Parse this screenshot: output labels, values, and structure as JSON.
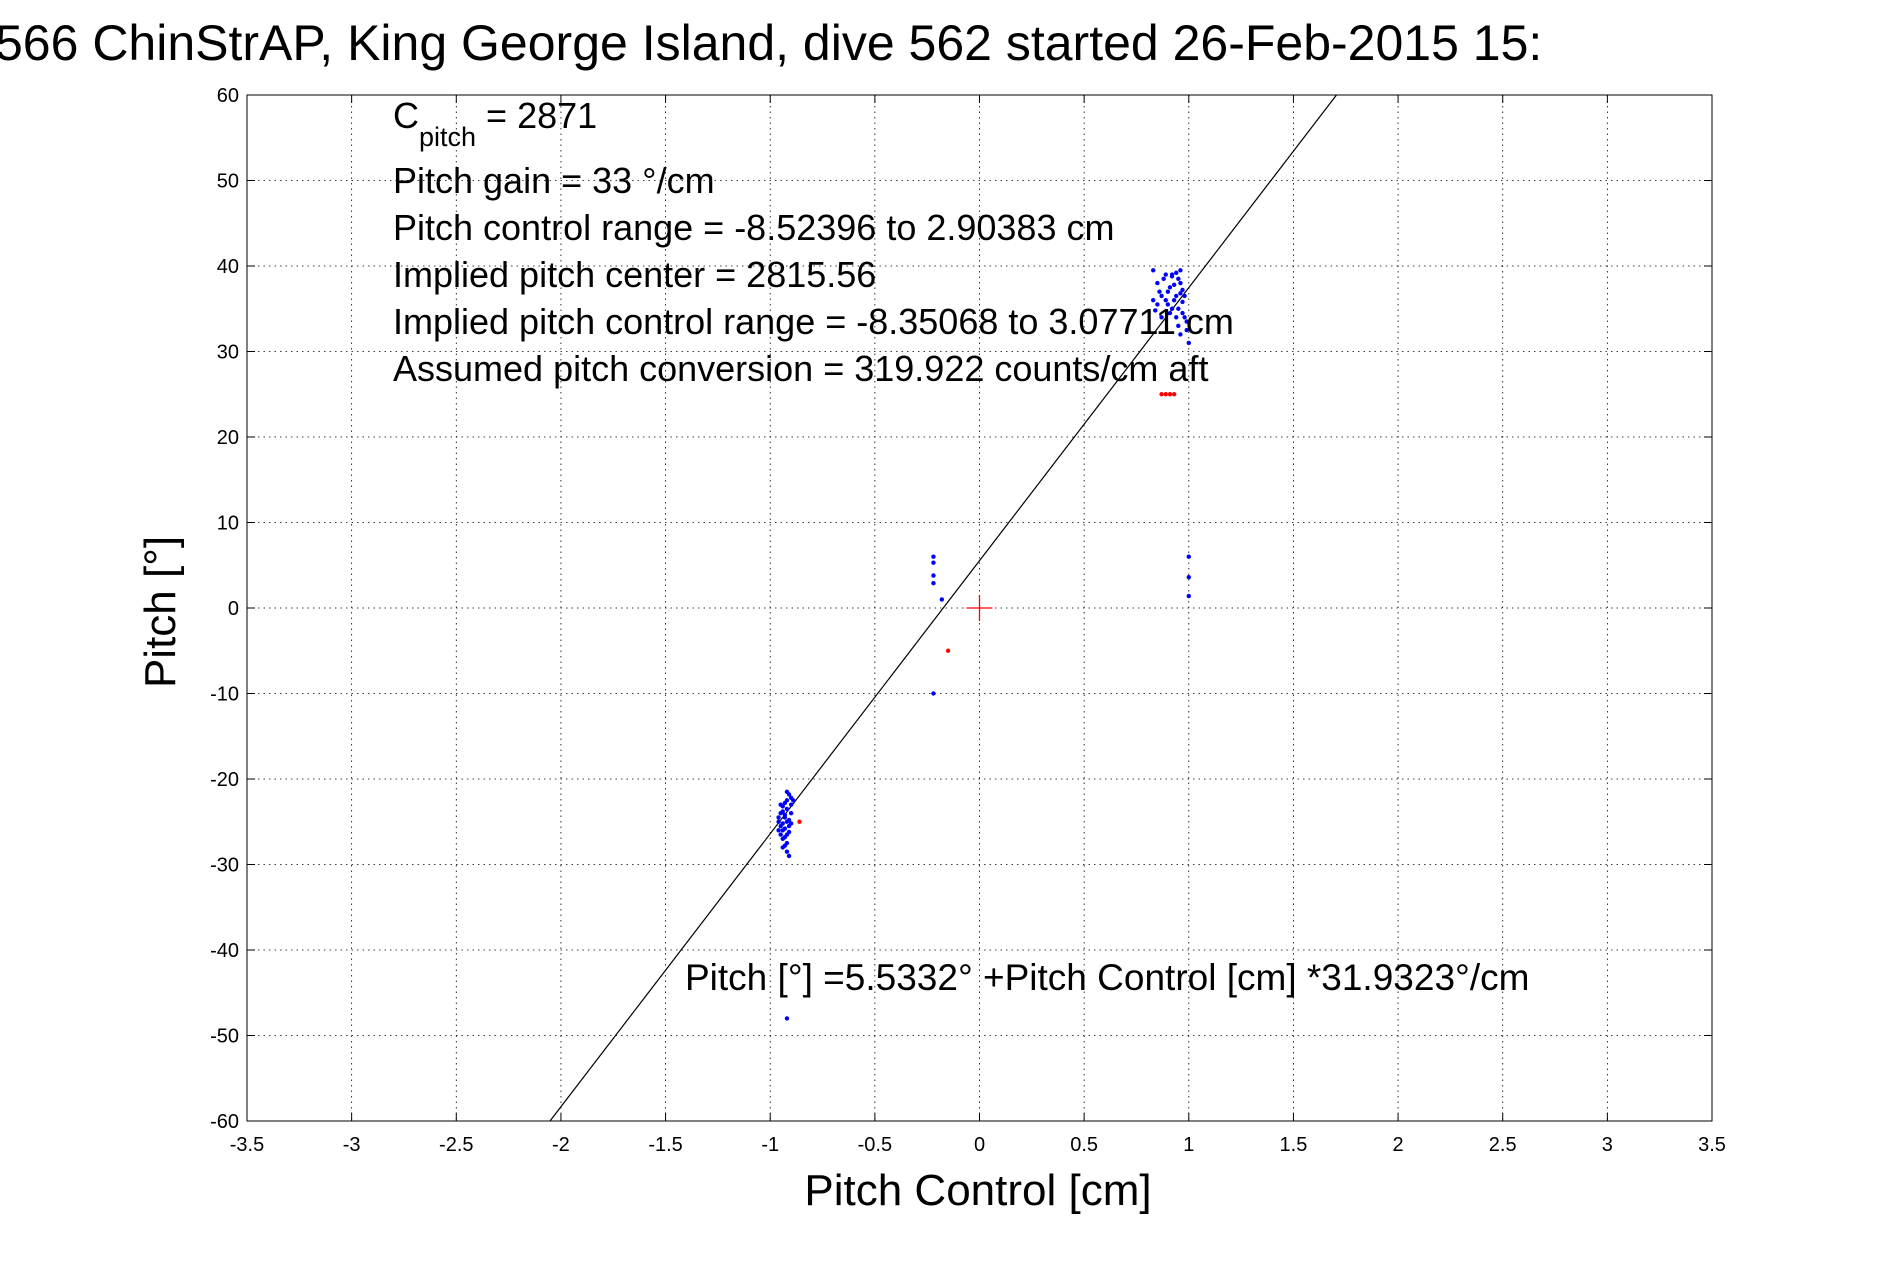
{
  "chart_data": {
    "type": "scatter",
    "title": "566 ChinStrAP, King George Island, dive 562 started 26-Feb-2015 15:",
    "xlabel": "Pitch Control [cm]",
    "ylabel": "Pitch [°]",
    "xlim": [
      -3.5,
      3.5
    ],
    "ylim": [
      -60,
      60
    ],
    "grid": true,
    "x_ticks": [
      "-3.5",
      "-3",
      "-2.5",
      "-2",
      "-1.5",
      "-1",
      "-0.5",
      "0",
      "0.5",
      "1",
      "1.5",
      "2",
      "2.5",
      "3",
      "3.5"
    ],
    "y_ticks": [
      "60",
      "50",
      "40",
      "30",
      "20",
      "10",
      "0",
      "-10",
      "-20",
      "-30",
      "-40",
      "-50",
      "-60"
    ],
    "annotations": {
      "c_pitch_prefix": "C",
      "c_pitch_sub": "pitch",
      "c_pitch_value": " = 2871",
      "pitch_gain": "Pitch gain = 33 °/cm",
      "control_range": "Pitch control range = -8.52396 to 2.90383 cm",
      "implied_center": "Implied pitch center = 2815.56",
      "implied_range": "Implied pitch control range = -8.35068 to 3.07711 cm",
      "assumed_conversion": "Assumed pitch conversion = 319.922 counts/cm aft"
    },
    "fit_label": "Pitch [°] =5.5332° +Pitch Control [cm] *31.9323°/cm",
    "fit": {
      "intercept": 5.5332,
      "slope": 31.9323
    },
    "colors": {
      "fit_line": "#000000",
      "blue_points": "#0000ff",
      "red_points": "#ff0000",
      "center_marker": "#ff0000"
    },
    "center_marker": {
      "x": 0,
      "y": 0
    },
    "series": [
      {
        "color": "blue",
        "points": [
          [
            -0.95,
            -23.0
          ],
          [
            -0.94,
            -23.8
          ],
          [
            -0.93,
            -24.5
          ],
          [
            -0.92,
            -22.5
          ],
          [
            -0.91,
            -21.8
          ],
          [
            -0.9,
            -22.2
          ],
          [
            -0.96,
            -25.0
          ],
          [
            -0.95,
            -25.5
          ],
          [
            -0.94,
            -26.0
          ],
          [
            -0.93,
            -26.8
          ],
          [
            -0.92,
            -27.5
          ],
          [
            -0.92,
            -28.5
          ],
          [
            -0.91,
            -29.0
          ],
          [
            -0.94,
            -25.2
          ],
          [
            -0.93,
            -24.2
          ],
          [
            -0.92,
            -23.5
          ],
          [
            -0.91,
            -24.8
          ],
          [
            -0.9,
            -23.0
          ],
          [
            -0.89,
            -22.5
          ],
          [
            -0.95,
            -24.0
          ],
          [
            -0.96,
            -26.0
          ],
          [
            -0.94,
            -27.0
          ],
          [
            -0.93,
            -25.8
          ],
          [
            -0.92,
            -25.0
          ],
          [
            -0.91,
            -26.2
          ],
          [
            -0.9,
            -24.0
          ],
          [
            -0.95,
            -26.5
          ],
          [
            -0.93,
            -27.8
          ],
          [
            -0.92,
            -26.5
          ],
          [
            -0.91,
            -25.5
          ],
          [
            -0.94,
            -23.2
          ],
          [
            -0.93,
            -22.8
          ],
          [
            -0.92,
            -21.5
          ],
          [
            -0.9,
            -25.2
          ],
          [
            -0.96,
            -24.5
          ],
          [
            -0.94,
            -28.0
          ],
          [
            0.83,
            39.5
          ],
          [
            0.85,
            38.0
          ],
          [
            0.86,
            37.0
          ],
          [
            0.87,
            36.5
          ],
          [
            0.88,
            38.5
          ],
          [
            0.89,
            39.0
          ],
          [
            0.9,
            35.5
          ],
          [
            0.91,
            37.5
          ],
          [
            0.92,
            38.8
          ],
          [
            0.93,
            36.0
          ],
          [
            0.94,
            39.2
          ],
          [
            0.95,
            35.0
          ],
          [
            0.96,
            38.0
          ],
          [
            0.97,
            34.5
          ],
          [
            0.98,
            36.5
          ],
          [
            0.99,
            33.5
          ],
          [
            1.0,
            31.0
          ],
          [
            0.92,
            35.0
          ],
          [
            0.94,
            34.0
          ],
          [
            0.96,
            36.8
          ],
          [
            0.93,
            37.8
          ],
          [
            0.95,
            38.5
          ],
          [
            0.97,
            37.2
          ],
          [
            0.91,
            34.5
          ],
          [
            0.89,
            36.0
          ],
          [
            0.87,
            34.0
          ],
          [
            0.85,
            35.5
          ],
          [
            0.83,
            36.0
          ],
          [
            0.84,
            34.8
          ],
          [
            0.95,
            33.0
          ],
          [
            0.96,
            32.0
          ],
          [
            0.98,
            34.0
          ],
          [
            0.99,
            32.5
          ],
          [
            0.9,
            37.0
          ],
          [
            0.92,
            39.0
          ],
          [
            0.94,
            36.5
          ],
          [
            0.96,
            39.5
          ],
          [
            0.97,
            35.8
          ],
          [
            -0.22,
            6.0
          ],
          [
            -0.22,
            5.3
          ],
          [
            -0.22,
            3.8
          ],
          [
            -0.22,
            2.9
          ],
          [
            -0.18,
            1.0
          ],
          [
            -0.22,
            -10.0
          ],
          [
            1.0,
            6.0
          ],
          [
            1.0,
            3.6
          ],
          [
            1.0,
            1.4
          ],
          [
            -0.92,
            -48.0
          ]
        ]
      },
      {
        "color": "red",
        "points": [
          [
            -0.86,
            -25.0
          ],
          [
            -0.15,
            -5.0
          ],
          [
            0.87,
            25.0
          ],
          [
            0.89,
            25.0
          ],
          [
            0.91,
            25.0
          ],
          [
            0.93,
            25.0
          ]
        ]
      }
    ]
  }
}
